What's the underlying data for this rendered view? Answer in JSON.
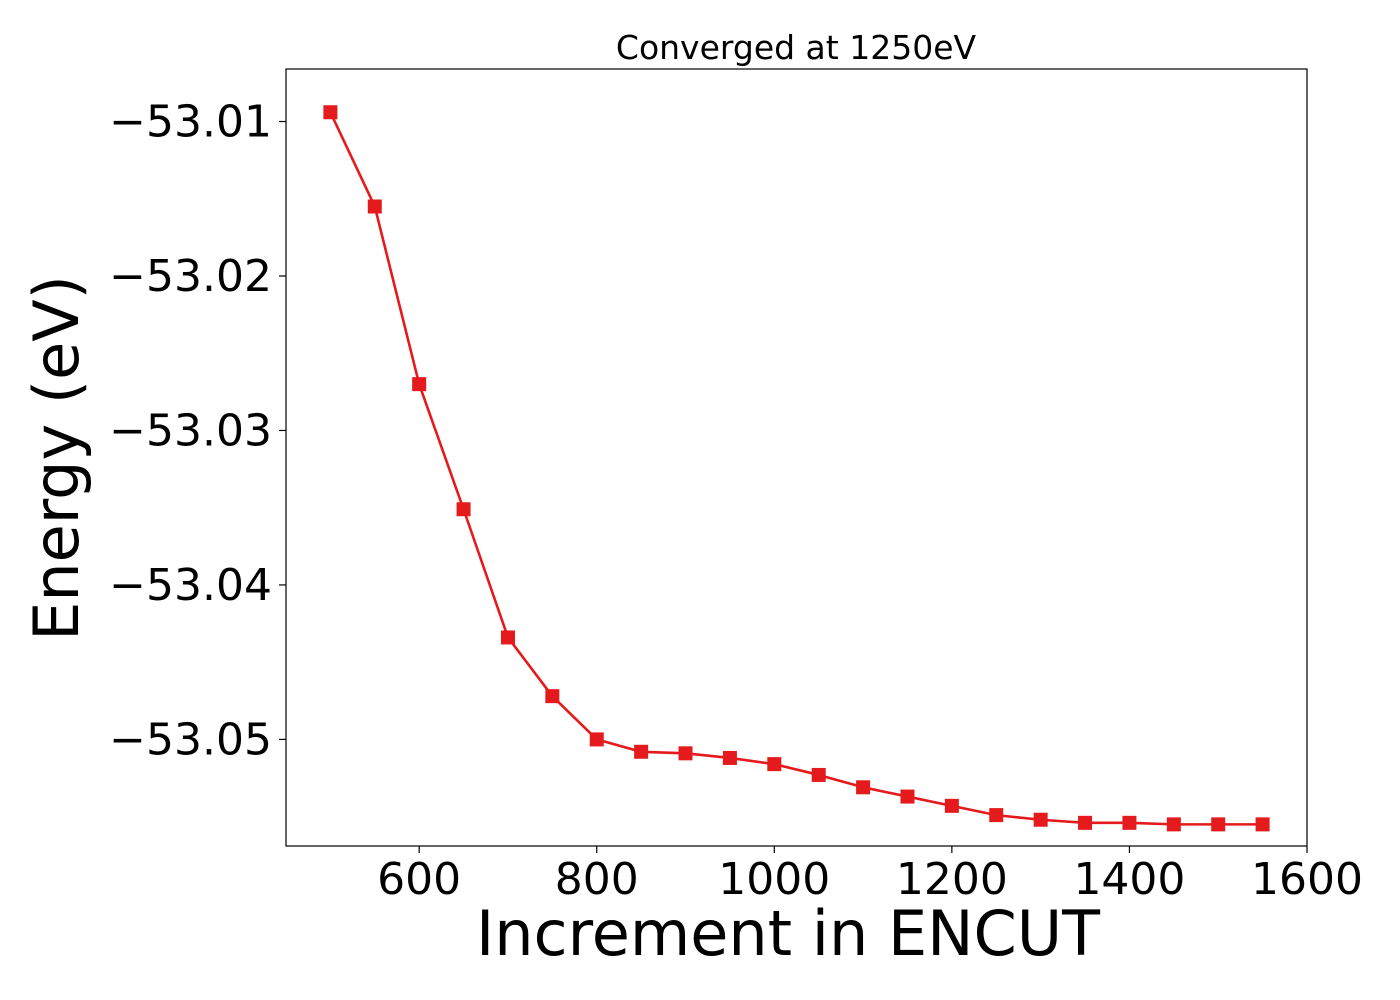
{
  "chart_data": {
    "type": "line",
    "title": "Converged at 1250eV",
    "xlabel": "Increment in ENCUT",
    "ylabel": "Energy (eV)",
    "xlim": [
      450,
      1600
    ],
    "ylim": [
      -53.0569,
      -53.0066
    ],
    "x_ticks": [
      600,
      800,
      1000,
      1200,
      1400,
      1600
    ],
    "x_tick_labels": [
      "600",
      "800",
      "1000",
      "1200",
      "1400",
      "1600"
    ],
    "y_ticks": [
      -53.01,
      -53.02,
      -53.03,
      -53.04,
      -53.05
    ],
    "y_tick_labels": [
      "−53.01",
      "−53.02",
      "−53.03",
      "−53.04",
      "−53.05"
    ],
    "grid": false,
    "marker": "square",
    "color": "#e41a1c",
    "series": [
      {
        "x": [
          500,
          550,
          600,
          650,
          700,
          750,
          800,
          850,
          900,
          950,
          1000,
          1050,
          1100,
          1150,
          1200,
          1250,
          1300,
          1350,
          1400,
          1450,
          1500,
          1550
        ],
        "y": [
          -53.0094,
          -53.0155,
          -53.027,
          -53.0351,
          -53.0434,
          -53.0472,
          -53.05,
          -53.0508,
          -53.0509,
          -53.0512,
          -53.0516,
          -53.0523,
          -53.0531,
          -53.0537,
          -53.0543,
          -53.0549,
          -53.0552,
          -53.0554,
          -53.0554,
          -53.0555,
          -53.0555,
          -53.0555
        ]
      }
    ]
  }
}
